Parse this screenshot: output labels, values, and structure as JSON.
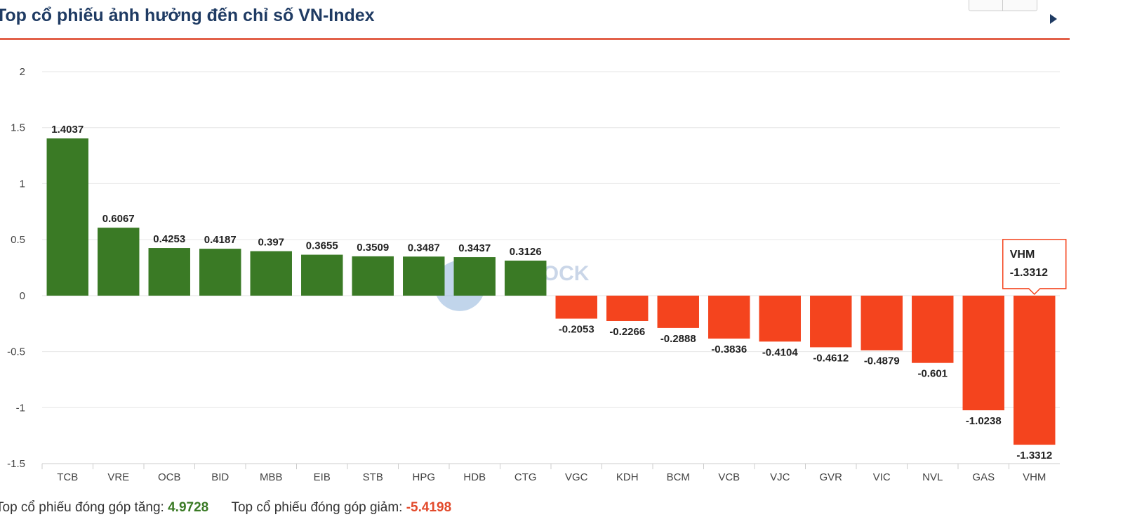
{
  "header": {
    "title": "Top cổ phiếu ảnh hưởng đến chỉ số VN-Index"
  },
  "footer": {
    "gain_label": "Top cổ phiếu đóng góp tăng:",
    "gain_value": "4.9728",
    "loss_label": "Top cổ phiếu đóng góp giảm:",
    "loss_value": "-5.4198"
  },
  "colors": {
    "positive": "#3a7a25",
    "negative": "#f4441e",
    "title": "#1f3b63",
    "accent": "#e2614a"
  },
  "chart_data": {
    "type": "bar",
    "categories": [
      "TCB",
      "VRE",
      "OCB",
      "BID",
      "MBB",
      "EIB",
      "STB",
      "HPG",
      "HDB",
      "CTG",
      "VGC",
      "KDH",
      "BCM",
      "VCB",
      "VJC",
      "GVR",
      "VIC",
      "NVL",
      "GAS",
      "VHM"
    ],
    "values": [
      1.4037,
      0.6067,
      0.4253,
      0.4187,
      0.397,
      0.3655,
      0.3509,
      0.3487,
      0.3437,
      0.3126,
      -0.2053,
      -0.2266,
      -0.2888,
      -0.3836,
      -0.4104,
      -0.4612,
      -0.4879,
      -0.601,
      -1.0238,
      -1.3312
    ],
    "value_labels": [
      "1.4037",
      "0.6067",
      "0.4253",
      "0.4187",
      "0.397",
      "0.3655",
      "0.3509",
      "0.3487",
      "0.3437",
      "0.3126",
      "-0.2053",
      "-0.2266",
      "-0.2888",
      "-0.3836",
      "-0.4104",
      "-0.4612",
      "-0.4879",
      "-0.601",
      "-1.0238",
      "-1.3312"
    ],
    "yticks": [
      2,
      1.5,
      1,
      0.5,
      0,
      -0.5,
      -1,
      -1.5
    ],
    "ytick_labels": [
      "2",
      "1.5",
      "1",
      "0.5",
      "0",
      "-0.5",
      "-1",
      "-1.5"
    ],
    "ylim": [
      -1.5,
      2
    ],
    "grid": true,
    "title": "",
    "xlabel": "",
    "ylabel": "",
    "tooltip": {
      "category": "VHM",
      "value": "-1.3312"
    }
  }
}
